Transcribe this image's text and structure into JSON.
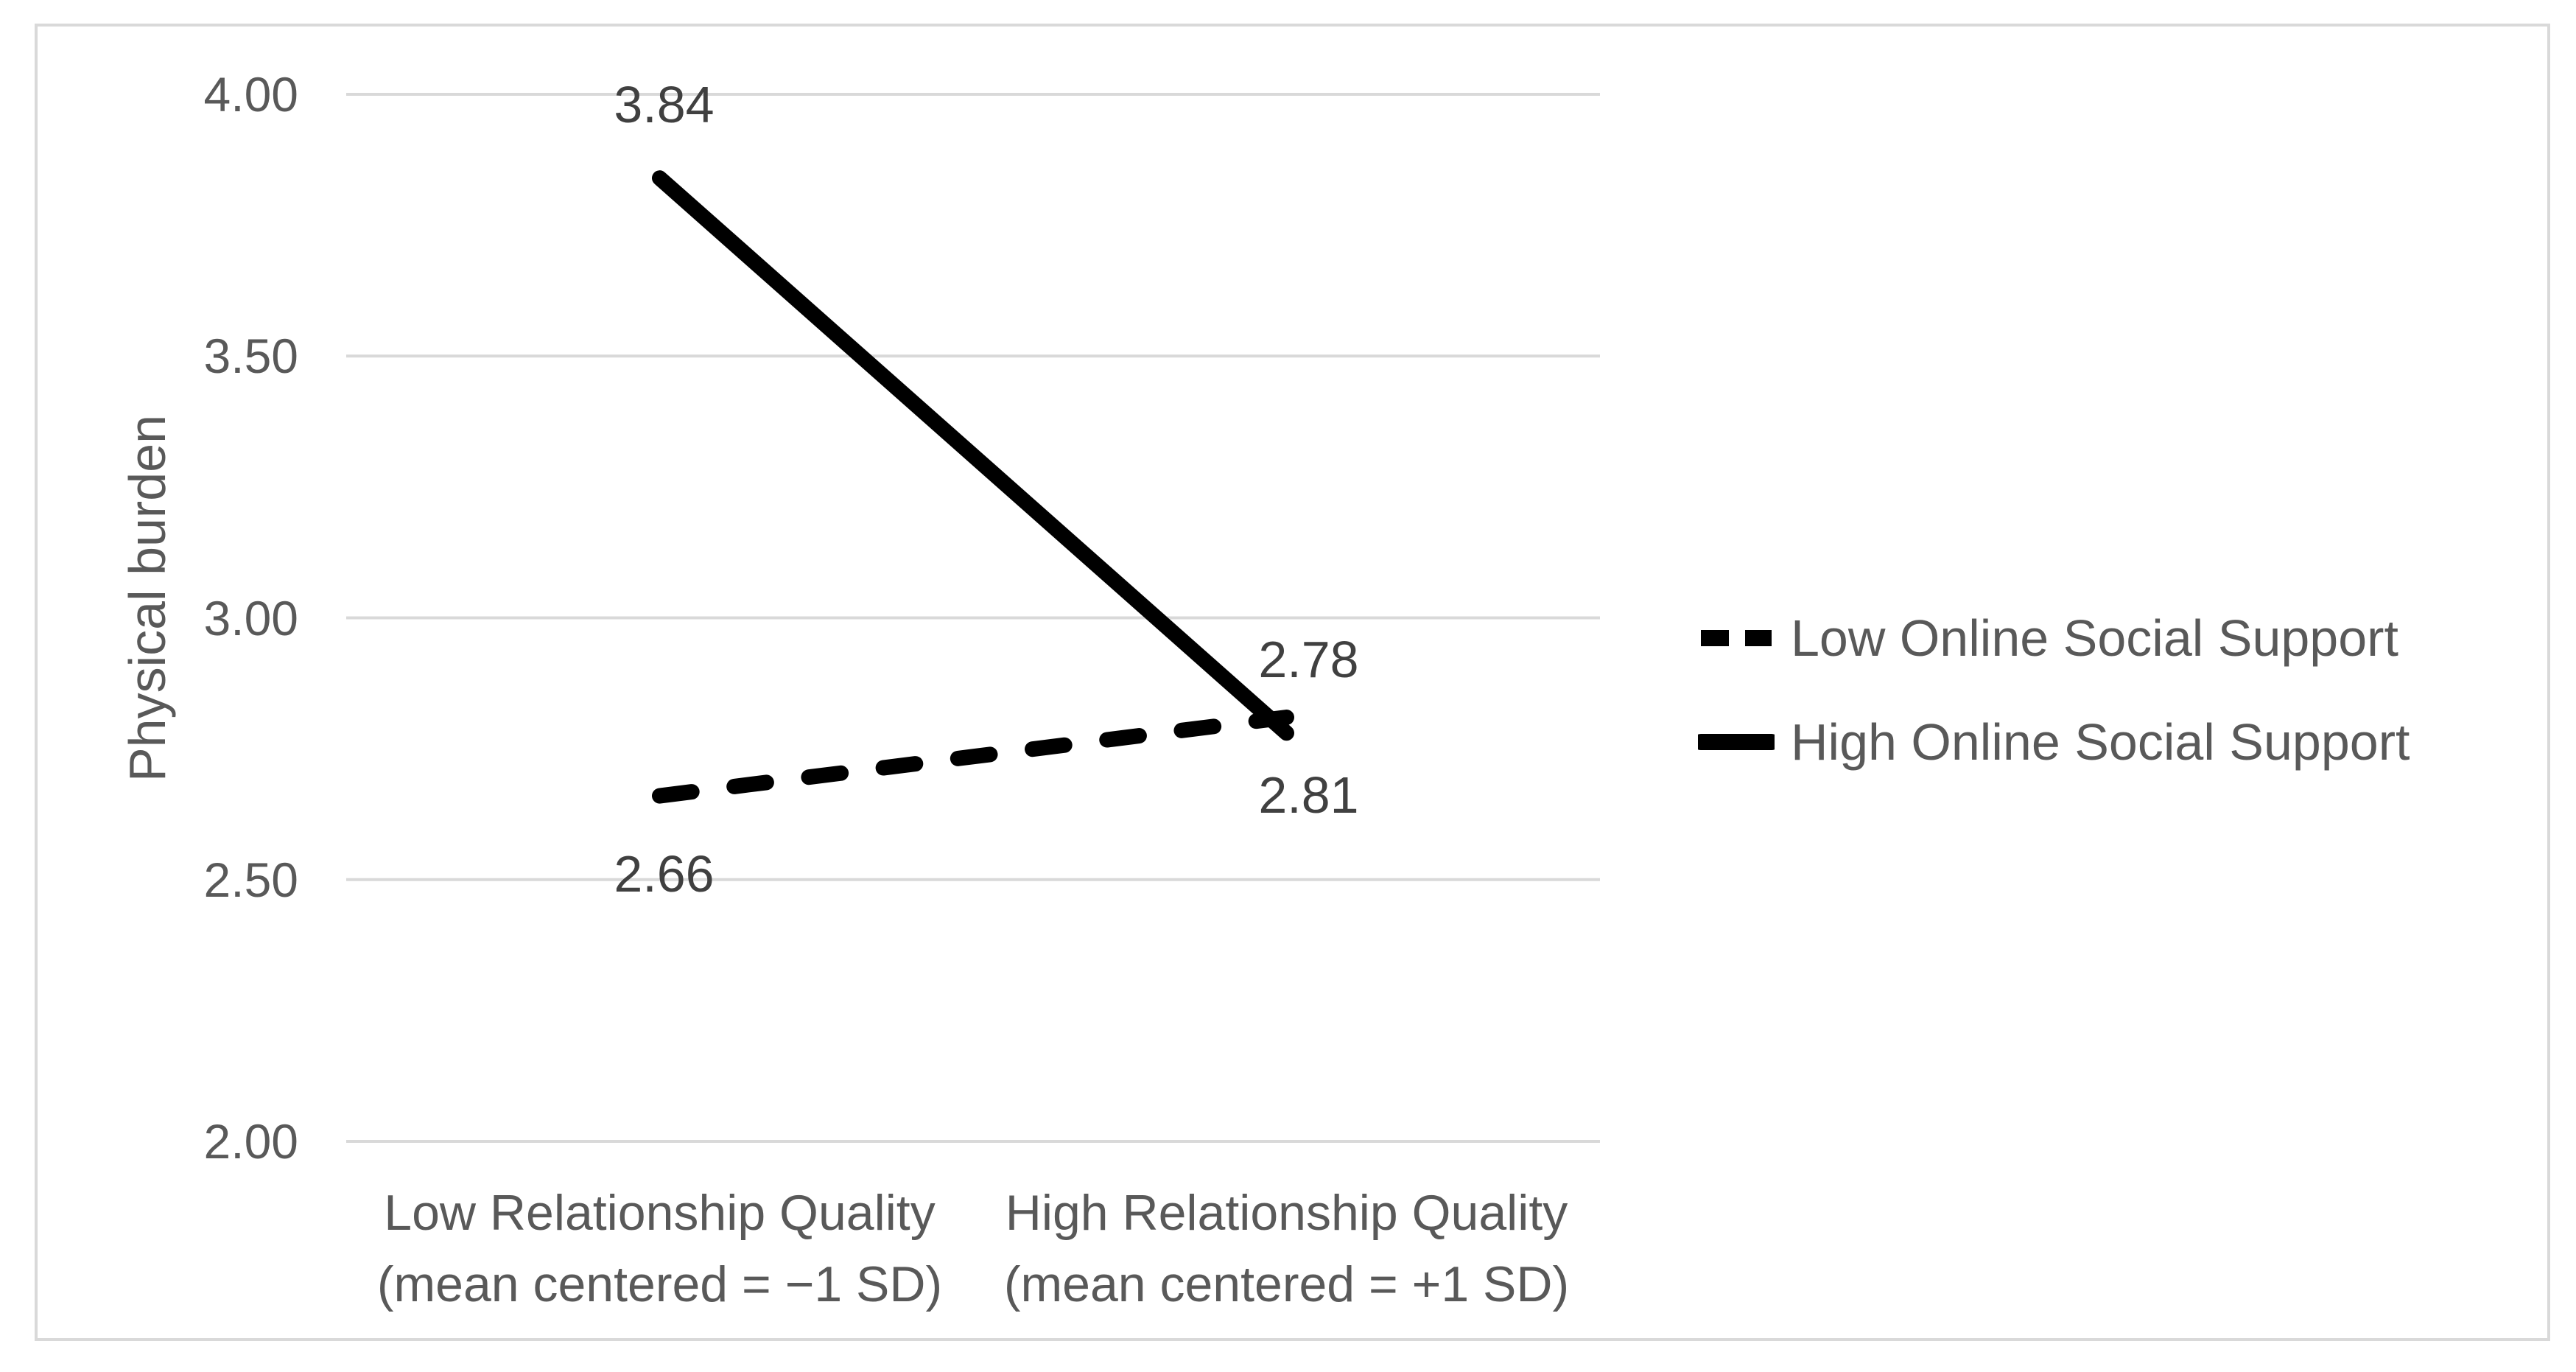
{
  "colors": {
    "line": "#000000",
    "axis_text": "#595959",
    "data_label_text": "#404040",
    "gridline": "#d9d9d9",
    "frame_border": "#d9d9d9",
    "background": "#ffffff"
  },
  "chart_data": {
    "type": "line",
    "title": "",
    "xlabel": "",
    "ylabel": "Physical burden",
    "ylim": [
      2.0,
      4.0
    ],
    "grid": true,
    "legend_position": "right",
    "y_ticks": [
      {
        "value": 4.0,
        "label": "4.00"
      },
      {
        "value": 3.5,
        "label": "3.50"
      },
      {
        "value": 3.0,
        "label": "3.00"
      },
      {
        "value": 2.5,
        "label": "2.50"
      },
      {
        "value": 2.0,
        "label": "2.00"
      }
    ],
    "categories": [
      {
        "line1": "Low Relationship Quality",
        "line2": "(mean centered = −1 SD)"
      },
      {
        "line1": "High Relationship Quality",
        "line2": "(mean centered = +1 SD)"
      }
    ],
    "series": [
      {
        "name": "Low Online Social Support",
        "style": "dashed",
        "values": [
          2.66,
          2.81
        ],
        "labels": [
          "2.66",
          "2.81"
        ],
        "label_placement": [
          "below",
          "below"
        ]
      },
      {
        "name": "High Online Social Support",
        "style": "solid",
        "values": [
          3.84,
          2.78
        ],
        "labels": [
          "3.84",
          "2.78"
        ],
        "label_placement": [
          "above",
          "above"
        ]
      }
    ]
  }
}
